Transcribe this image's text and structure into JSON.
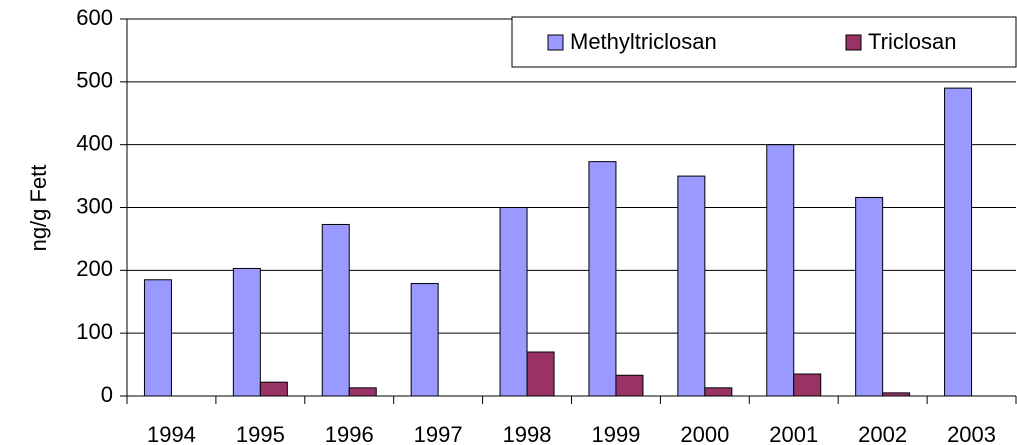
{
  "chart_data": {
    "type": "bar",
    "y_label": "ng/g Fett",
    "categories": [
      "1994",
      "1995",
      "1996",
      "1997",
      "1998",
      "1999",
      "2000",
      "2001",
      "2002",
      "2003"
    ],
    "series": [
      {
        "name": "Methyltriclosan",
        "color": "#9999ff",
        "values": [
          185,
          203,
          273,
          179,
          300,
          373,
          350,
          400,
          316,
          490
        ]
      },
      {
        "name": "Triclosan",
        "color": "#993366",
        "values": [
          null,
          22,
          13,
          null,
          70,
          33,
          13,
          35,
          5,
          null
        ]
      }
    ],
    "ylim": [
      0,
      600
    ],
    "yticks": [
      0,
      100,
      200,
      300,
      400,
      500,
      600
    ],
    "grid": true,
    "legend": "top-right"
  }
}
